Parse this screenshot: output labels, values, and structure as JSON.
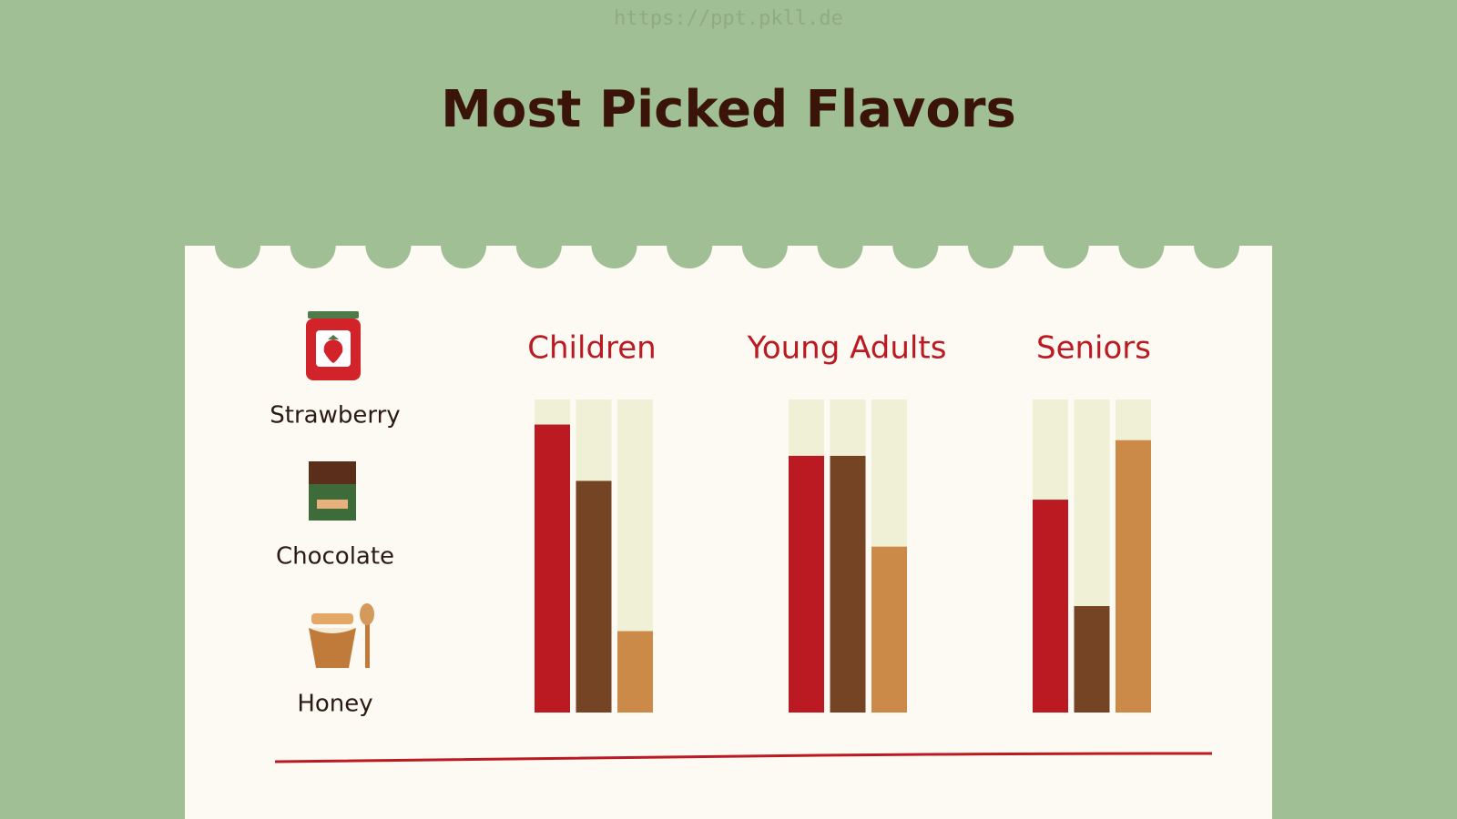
{
  "watermark": "https://ppt.pkll.de",
  "chart_data": {
    "type": "bar",
    "title": "Most Picked Flavors",
    "categories": [
      "Children",
      "Young Adults",
      "Seniors"
    ],
    "series": [
      {
        "name": "Strawberry",
        "color": "#bb1a22",
        "values": [
          92,
          82,
          68
        ]
      },
      {
        "name": "Chocolate",
        "color": "#744425",
        "values": [
          74,
          82,
          34
        ]
      },
      {
        "name": "Honey",
        "color": "#cb8a48",
        "values": [
          26,
          53,
          87
        ]
      }
    ],
    "ylim": [
      0,
      100
    ],
    "track_color": "#eff0d6"
  }
}
